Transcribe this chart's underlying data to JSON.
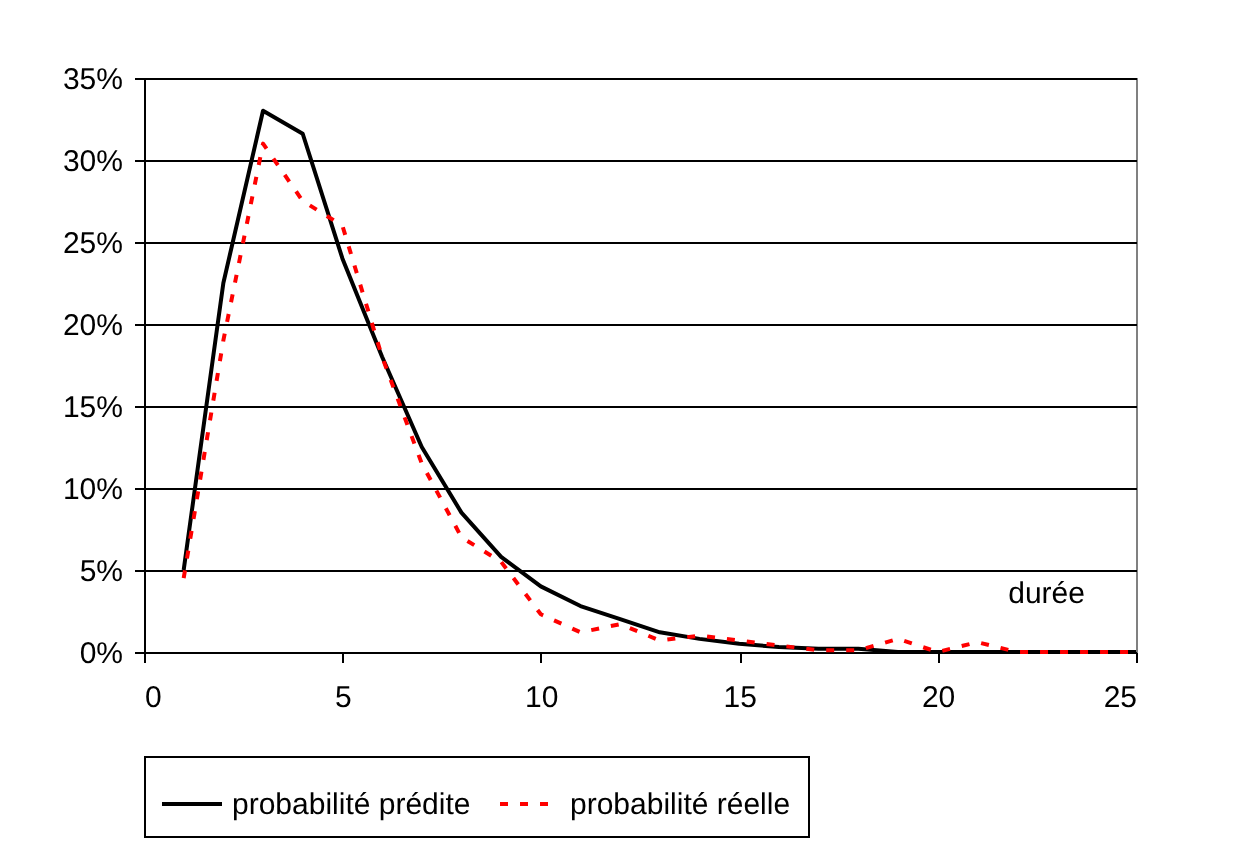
{
  "chart_data": {
    "type": "line",
    "xlabel": "durée",
    "x": [
      1,
      2,
      3,
      4,
      5,
      6,
      7,
      8,
      9,
      10,
      11,
      12,
      13,
      14,
      15,
      16,
      17,
      18,
      19,
      20,
      21,
      22,
      23,
      24,
      25
    ],
    "series": [
      {
        "name": "probabilité prédite",
        "color": "#000000",
        "line_style": "solid",
        "values": [
          5,
          22.5,
          33,
          31.6,
          24,
          18,
          12.5,
          8.5,
          5.8,
          4,
          2.8,
          2,
          1.2,
          0.8,
          0.5,
          0.3,
          0.2,
          0.2,
          0,
          0,
          0,
          0,
          0,
          0,
          0
        ]
      },
      {
        "name": "probabilité réelle",
        "color": "#ff0000",
        "line_style": "dashed",
        "values": [
          4.5,
          19,
          31,
          27.5,
          26,
          18,
          11.5,
          7,
          5.5,
          2.3,
          1.2,
          1.7,
          0.7,
          1,
          0.7,
          0.4,
          0.1,
          0.1,
          0.8,
          0,
          0.6,
          0,
          0,
          0,
          0
        ]
      }
    ],
    "xlim": [
      0,
      25
    ],
    "xticks": [
      0,
      5,
      10,
      15,
      20,
      25
    ],
    "ylim": [
      0,
      35
    ],
    "yticks": [
      {
        "value": 0,
        "label": "0%"
      },
      {
        "value": 5,
        "label": "5%"
      },
      {
        "value": 10,
        "label": "10%"
      },
      {
        "value": 15,
        "label": "15%"
      },
      {
        "value": 20,
        "label": "20%"
      },
      {
        "value": 25,
        "label": "25%"
      },
      {
        "value": 30,
        "label": "30%"
      },
      {
        "value": 35,
        "label": "35%"
      }
    ],
    "grid": "y",
    "legend": "bottom",
    "marker": "none"
  }
}
